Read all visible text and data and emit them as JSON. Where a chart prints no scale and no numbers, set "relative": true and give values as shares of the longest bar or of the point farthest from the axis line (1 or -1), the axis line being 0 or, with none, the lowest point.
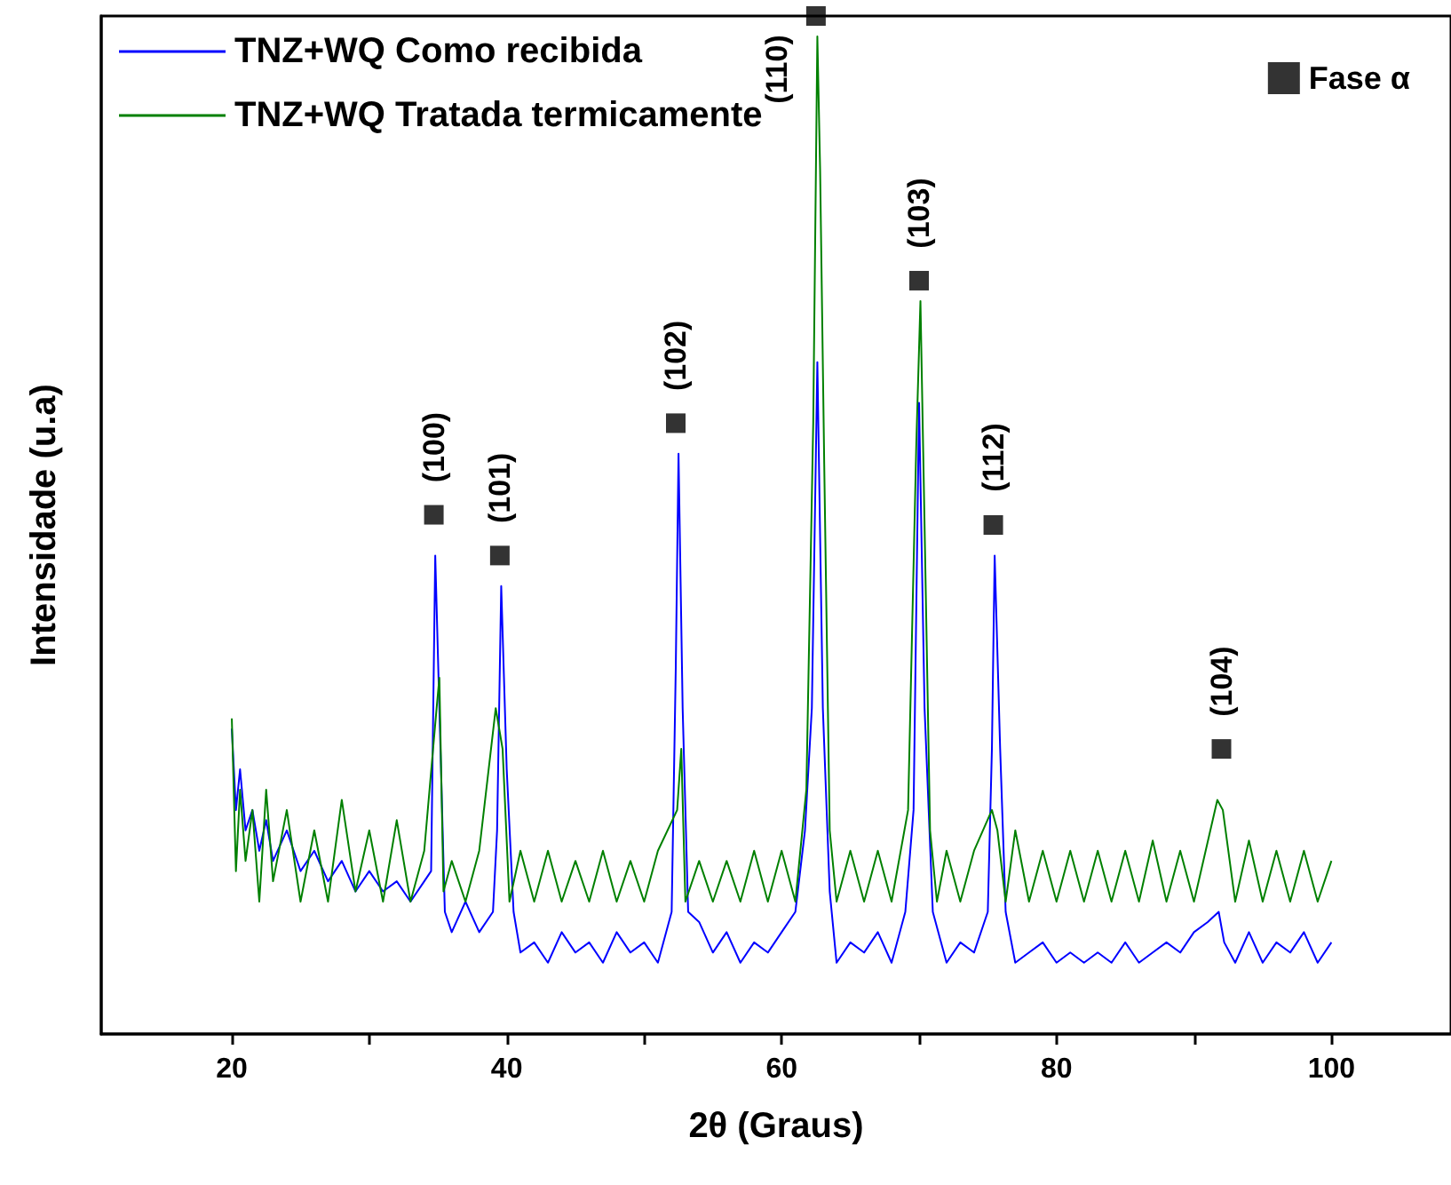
{
  "chart_data": {
    "type": "line",
    "relative": true,
    "xlabel": "2θ (Graus)",
    "ylabel": "Intensidade (u.a)",
    "xlim": [
      10.5,
      108.7
    ],
    "xticks": [
      20,
      {
        "value": 30,
        "label": null
      },
      40,
      {
        "value": 50,
        "label": null
      },
      60,
      {
        "value": 70,
        "label": null
      },
      80,
      {
        "value": 90,
        "label": null
      },
      100
    ],
    "grid": false,
    "legend": "top",
    "marker": "none",
    "line_style": "solid",
    "series": [
      {
        "name": "TNZ+WQ Como recibida",
        "color": "#0000ff",
        "x": [
          20,
          20.3,
          20.6,
          21,
          21.5,
          22,
          22.5,
          23,
          24,
          25,
          26,
          27,
          28,
          29,
          30,
          31,
          32,
          33,
          34,
          34.5,
          34.8,
          35.1,
          35.5,
          36,
          37,
          38,
          39,
          39.3,
          39.6,
          40,
          40.5,
          41,
          42,
          43,
          44,
          45,
          46,
          47,
          48,
          49,
          50,
          51,
          52,
          52.3,
          52.5,
          52.8,
          53.2,
          54,
          55,
          56,
          57,
          58,
          59,
          60,
          61,
          61.7,
          62.2,
          62.6,
          63,
          63.5,
          64,
          65,
          66,
          67,
          68,
          69,
          69.6,
          70,
          70.4,
          71,
          72,
          73,
          74,
          75,
          75.3,
          75.5,
          75.9,
          76.3,
          77,
          78,
          79,
          80,
          81,
          82,
          83,
          84,
          85,
          86,
          87,
          88,
          89,
          90,
          91,
          91.8,
          92.2,
          93,
          94,
          95,
          96,
          97,
          98,
          99,
          100
        ],
        "values": [
          0.3,
          0.22,
          0.26,
          0.2,
          0.22,
          0.18,
          0.21,
          0.17,
          0.2,
          0.16,
          0.18,
          0.15,
          0.17,
          0.14,
          0.16,
          0.14,
          0.15,
          0.13,
          0.15,
          0.16,
          0.47,
          0.32,
          0.12,
          0.1,
          0.13,
          0.1,
          0.12,
          0.2,
          0.44,
          0.26,
          0.12,
          0.08,
          0.09,
          0.07,
          0.1,
          0.08,
          0.09,
          0.07,
          0.1,
          0.08,
          0.09,
          0.07,
          0.12,
          0.36,
          0.57,
          0.32,
          0.12,
          0.11,
          0.08,
          0.1,
          0.07,
          0.09,
          0.08,
          0.1,
          0.12,
          0.2,
          0.32,
          0.66,
          0.32,
          0.14,
          0.07,
          0.09,
          0.08,
          0.1,
          0.07,
          0.12,
          0.22,
          0.62,
          0.32,
          0.12,
          0.07,
          0.09,
          0.08,
          0.12,
          0.28,
          0.47,
          0.28,
          0.12,
          0.07,
          0.08,
          0.09,
          0.07,
          0.08,
          0.07,
          0.08,
          0.07,
          0.09,
          0.07,
          0.08,
          0.09,
          0.08,
          0.1,
          0.11,
          0.12,
          0.09,
          0.07,
          0.1,
          0.07,
          0.09,
          0.08,
          0.1,
          0.07,
          0.09
        ]
      },
      {
        "name": "TNZ+WQ Tratada termicamente",
        "color": "#008000",
        "x": [
          20,
          20.3,
          20.6,
          21,
          21.5,
          22,
          22.5,
          23,
          24,
          25,
          26,
          27,
          28,
          29,
          30,
          31,
          32,
          33,
          34,
          34.9,
          35.1,
          35.4,
          36,
          37,
          38,
          39.2,
          39.7,
          40.2,
          41,
          42,
          43,
          44,
          45,
          46,
          47,
          48,
          49,
          50,
          51,
          52.4,
          52.7,
          53,
          54,
          55,
          56,
          57,
          58,
          59,
          60,
          61,
          61.8,
          62.3,
          62.6,
          62.8,
          63.1,
          63.5,
          64,
          65,
          66,
          67,
          68,
          69.2,
          69.8,
          70.1,
          70.4,
          70.8,
          71.3,
          72,
          73,
          74,
          75.3,
          75.7,
          76.3,
          77,
          78,
          79,
          80,
          81,
          82,
          83,
          84,
          85,
          86,
          87,
          88,
          89,
          90,
          91.7,
          92.1,
          93,
          94,
          95,
          96,
          97,
          98,
          99,
          100
        ],
        "values": [
          0.31,
          0.16,
          0.24,
          0.17,
          0.22,
          0.13,
          0.24,
          0.15,
          0.22,
          0.13,
          0.2,
          0.13,
          0.23,
          0.14,
          0.2,
          0.13,
          0.21,
          0.13,
          0.18,
          0.32,
          0.35,
          0.14,
          0.17,
          0.13,
          0.18,
          0.32,
          0.28,
          0.13,
          0.18,
          0.13,
          0.18,
          0.13,
          0.17,
          0.13,
          0.18,
          0.13,
          0.17,
          0.13,
          0.18,
          0.22,
          0.28,
          0.13,
          0.17,
          0.13,
          0.17,
          0.13,
          0.18,
          0.13,
          0.18,
          0.13,
          0.24,
          0.6,
          0.98,
          0.85,
          0.56,
          0.2,
          0.13,
          0.18,
          0.13,
          0.18,
          0.13,
          0.22,
          0.58,
          0.72,
          0.5,
          0.2,
          0.13,
          0.18,
          0.13,
          0.18,
          0.22,
          0.2,
          0.13,
          0.2,
          0.13,
          0.18,
          0.13,
          0.18,
          0.13,
          0.18,
          0.13,
          0.18,
          0.13,
          0.19,
          0.13,
          0.18,
          0.13,
          0.23,
          0.22,
          0.13,
          0.19,
          0.13,
          0.18,
          0.13,
          0.18,
          0.13,
          0.17
        ]
      },
      {
        "name": "Fase α",
        "type": "scatter",
        "marker": "square",
        "color": "#000000",
        "x": [
          34.7,
          39.5,
          52.3,
          62.5,
          70.0,
          75.4,
          92.0
        ],
        "values": [
          0.51,
          0.47,
          0.6,
          1,
          0.74,
          0.5,
          0.28
        ]
      }
    ],
    "annotations": [
      {
        "text": "(100)",
        "x": 34.7,
        "y": 0.51
      },
      {
        "text": "(101)",
        "x": 39.5,
        "y": 0.47
      },
      {
        "text": "(102)",
        "x": 52.3,
        "y": 0.6
      },
      {
        "text": "(110)",
        "x": 62.5,
        "y": 1
      },
      {
        "text": "(103)",
        "x": 70.0,
        "y": 0.74
      },
      {
        "text": "(112)",
        "x": 75.4,
        "y": 0.5
      },
      {
        "text": "(104)",
        "x": 92.0,
        "y": 0.28
      }
    ]
  }
}
